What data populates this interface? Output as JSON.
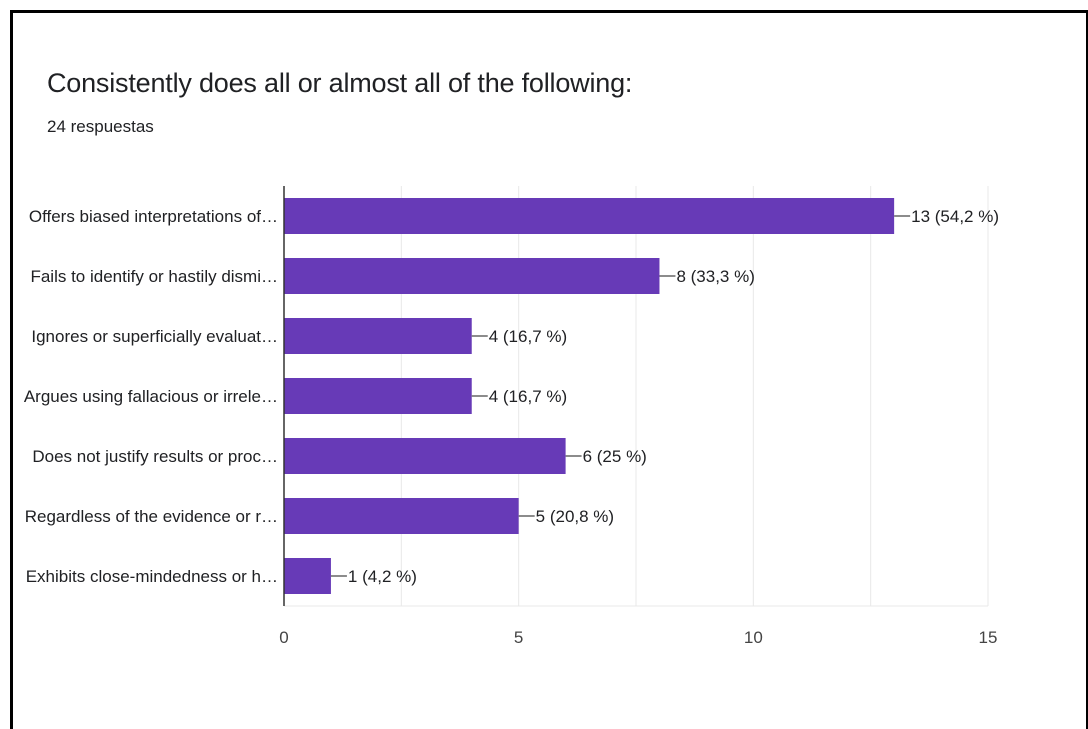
{
  "header": {
    "title": "Consistently does all or almost all of the following:",
    "responses": "24 respuestas"
  },
  "colors": {
    "bar": "#673ab7",
    "grid": "#e8e8e8",
    "axis": "#333333",
    "connector": "#666666"
  },
  "chart_data": {
    "type": "bar",
    "orientation": "horizontal",
    "categories": [
      "Offers biased interpretations of…",
      "Fails to identify or hastily dismi…",
      "Ignores or superficially evaluat…",
      "Argues using fallacious or irrele…",
      "Does not justify results or proc…",
      "Regardless of the evidence or r…",
      "Exhibits close-mindedness or h…"
    ],
    "values": [
      13,
      8,
      4,
      4,
      6,
      5,
      1
    ],
    "data_labels": [
      "13 (54,2 %)",
      "8 (33,3 %)",
      "4 (16,7 %)",
      "4 (16,7 %)",
      "6 (25 %)",
      "5 (20,8 %)",
      "1 (4,2 %)"
    ],
    "xlim": [
      0,
      15
    ],
    "xticks": [
      0,
      5,
      10,
      15
    ],
    "xtick_labels": [
      "0",
      "5",
      "10",
      "15"
    ],
    "grid": true,
    "legend": "none"
  }
}
